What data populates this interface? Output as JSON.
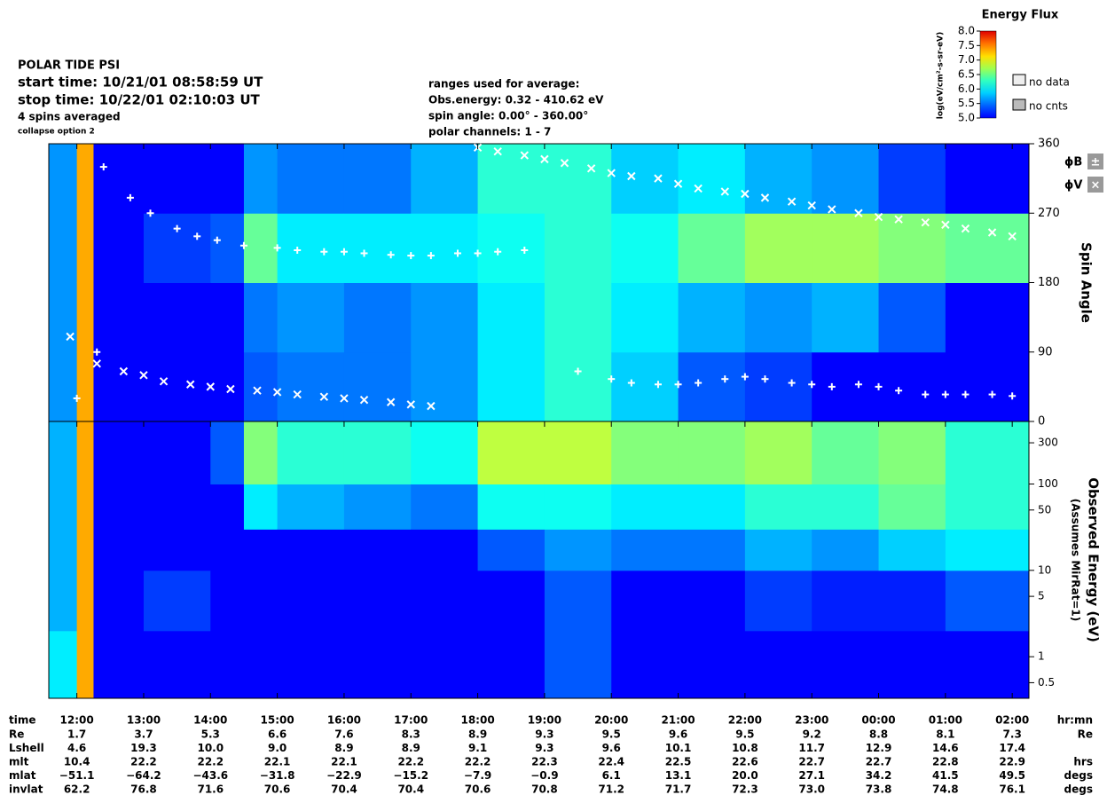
{
  "header": {
    "title": "POLAR TIDE PSI",
    "start": "start time: 10/21/01 08:58:59 UT",
    "stop": "stop time: 10/22/01 02:10:03 UT",
    "spins": "4 spins averaged",
    "collapse": "collapse option 2",
    "ranges": [
      "ranges used for average:",
      "Obs.energy: 0.32 - 410.62 eV",
      "spin angle: 0.00° - 360.00°",
      "polar channels: 1 - 7"
    ]
  },
  "legend": {
    "no_data": "no data",
    "no_cnts": "no cnts",
    "phi_b": "ϕB",
    "phi_b_symbol": "±",
    "phi_v": "ϕV",
    "phi_v_symbol": "×"
  },
  "chart_data": [
    {
      "type": "heatmap",
      "ylabel": "Spin Angle",
      "xlim": [
        11.58,
        26.25
      ],
      "ylim": [
        0,
        360
      ],
      "yticks": [
        0,
        90,
        180,
        270,
        360
      ],
      "x_bins": [
        11.58,
        12,
        12.25,
        13,
        14,
        14.5,
        15,
        16,
        17,
        18,
        19,
        20,
        21,
        22,
        23,
        24,
        25,
        26.25
      ],
      "y_bins": [
        0,
        90,
        180,
        270,
        360
      ],
      "values": [
        [
          5.5,
          5.5,
          5.5,
          5.5
        ],
        [
          7,
          7,
          7,
          7
        ],
        [
          5,
          5,
          5,
          5
        ],
        [
          5,
          5,
          5.2,
          5
        ],
        [
          5,
          5,
          5.3,
          5
        ],
        [
          5.3,
          5.4,
          6.2,
          5.5
        ],
        [
          5.4,
          5.5,
          5.8,
          5.4
        ],
        [
          5.4,
          5.4,
          5.8,
          5.4
        ],
        [
          5.5,
          5.5,
          5.8,
          5.6
        ],
        [
          5.8,
          5.8,
          5.9,
          6
        ],
        [
          6,
          6,
          6,
          6
        ],
        [
          5.7,
          5.8,
          5.9,
          5.7
        ],
        [
          5.3,
          5.6,
          6.2,
          5.8
        ],
        [
          5.2,
          5.5,
          6.4,
          5.6
        ],
        [
          5,
          5.6,
          6.4,
          5.5
        ],
        [
          5,
          5.3,
          6.3,
          5.2
        ],
        [
          5,
          5,
          6.2,
          5
        ]
      ],
      "colorbar": {
        "title": "Energy Flux",
        "label": "log(eV/cm²-s-sr-eV)",
        "lim": [
          5,
          8
        ],
        "ticks": [
          {
            "value": 5,
            "label": "5.0"
          },
          {
            "value": 5.5,
            "label": "5.5"
          },
          {
            "value": 6,
            "label": "6.0"
          },
          {
            "value": 6.5,
            "label": "6.5"
          },
          {
            "value": 7,
            "label": "7.0"
          },
          {
            "value": 7.5,
            "label": "7.5"
          },
          {
            "value": 8,
            "label": "8.0"
          }
        ]
      },
      "series": [
        {
          "name": "ϕB",
          "marker": "plus",
          "color": "#ffffff",
          "x": [
            12.0,
            12.3,
            12.4,
            12.8,
            13.1,
            13.5,
            13.8,
            14.1,
            14.5,
            15,
            15.3,
            15.7,
            16,
            16.3,
            16.7,
            17,
            17.3,
            17.7,
            18,
            18.3,
            18.7,
            19.5,
            20,
            20.3,
            20.7,
            21,
            21.3,
            21.7,
            22,
            22.3,
            22.7,
            23,
            23.3,
            23.7,
            24,
            24.3,
            24.7,
            25,
            25.3,
            25.7,
            26
          ],
          "values": [
            30,
            90,
            330,
            290,
            270,
            250,
            240,
            235,
            228,
            225,
            222,
            220,
            220,
            218,
            216,
            215,
            215,
            218,
            218,
            220,
            222,
            65,
            55,
            50,
            48,
            48,
            50,
            55,
            58,
            55,
            50,
            48,
            45,
            48,
            45,
            40,
            35,
            35,
            35,
            35,
            33
          ]
        },
        {
          "name": "ϕV",
          "marker": "cross",
          "color": "#ffffff",
          "x": [
            11.9,
            12.3,
            12.7,
            13,
            13.3,
            13.7,
            14,
            14.3,
            14.7,
            15,
            15.3,
            15.7,
            16,
            16.3,
            16.7,
            17,
            17.3,
            18,
            18.3,
            18.7,
            19,
            19.3,
            19.7,
            20,
            20.3,
            20.7,
            21,
            21.3,
            21.7,
            22,
            22.3,
            22.7,
            23,
            23.3,
            23.7,
            24,
            24.3,
            24.7,
            25,
            25.3,
            25.7,
            26
          ],
          "values": [
            110,
            75,
            65,
            60,
            52,
            48,
            45,
            42,
            40,
            38,
            35,
            32,
            30,
            28,
            25,
            22,
            20,
            355,
            350,
            345,
            340,
            335,
            328,
            322,
            318,
            315,
            308,
            302,
            298,
            295,
            290,
            285,
            280,
            275,
            270,
            265,
            262,
            258,
            255,
            250,
            245,
            240
          ]
        }
      ]
    },
    {
      "type": "heatmap",
      "ylabel": "Observed Energy (eV)",
      "ylabel2": "(Assumes MirRat=1)",
      "log_y": true,
      "xlim": [
        11.58,
        26.25
      ],
      "ylim": [
        0.33,
        530
      ],
      "yticks": [
        0.5,
        1,
        5,
        10,
        50,
        100,
        300
      ],
      "xticks": [
        {
          "value": 12,
          "label": "12:00"
        },
        {
          "value": 13,
          "label": "13:00"
        },
        {
          "value": 14,
          "label": "14:00"
        },
        {
          "value": 15,
          "label": "15:00"
        },
        {
          "value": 16,
          "label": "16:00"
        },
        {
          "value": 17,
          "label": "17:00"
        },
        {
          "value": 18,
          "label": "18:00"
        },
        {
          "value": 19,
          "label": "19:00"
        },
        {
          "value": 20,
          "label": "20:00"
        },
        {
          "value": 21,
          "label": "21:00"
        },
        {
          "value": 22,
          "label": "22:00"
        },
        {
          "value": 23,
          "label": "23:00"
        },
        {
          "value": 24,
          "label": "00:00"
        },
        {
          "value": 25,
          "label": "01:00"
        },
        {
          "value": 26,
          "label": "02:00"
        }
      ],
      "x_bins": [
        11.58,
        12,
        12.25,
        13,
        14,
        14.5,
        15,
        16,
        17,
        18,
        19,
        20,
        21,
        22,
        23,
        24,
        25,
        26.25
      ],
      "y_bins": [
        0.33,
        2,
        10,
        30,
        100,
        530
      ],
      "values": [
        [
          5.8,
          5.6,
          5.6,
          5.6,
          5.6
        ],
        [
          7,
          7,
          7,
          7,
          7
        ],
        [
          5,
          5,
          5,
          5,
          5
        ],
        [
          5,
          5.2,
          5,
          5,
          5
        ],
        [
          5,
          5,
          5,
          5,
          5.3
        ],
        [
          5,
          5,
          5,
          5.8,
          6.3
        ],
        [
          5,
          5,
          5,
          5.6,
          6
        ],
        [
          5,
          5,
          5,
          5.5,
          6
        ],
        [
          5,
          5,
          5,
          5.4,
          5.9
        ],
        [
          5,
          5,
          5.3,
          5.9,
          6.5
        ],
        [
          5.3,
          5.3,
          5.5,
          5.9,
          6.5
        ],
        [
          5,
          5,
          5.4,
          5.8,
          6.3
        ],
        [
          5,
          5,
          5.4,
          5.8,
          6.3
        ],
        [
          5,
          5.2,
          5.6,
          6,
          6.4
        ],
        [
          5,
          5.1,
          5.5,
          6,
          6.2
        ],
        [
          5,
          5.1,
          5.7,
          6.2,
          6.3
        ],
        [
          5,
          5.3,
          5.8,
          6,
          6
        ]
      ]
    }
  ],
  "ephemeris": {
    "time_label": "time",
    "time_unit": "hr:mn",
    "rows": [
      {
        "name": "Re",
        "unit": "Re",
        "values": [
          "1.7",
          "3.7",
          "5.3",
          "6.6",
          "7.6",
          "8.3",
          "8.9",
          "9.3",
          "9.5",
          "9.6",
          "9.5",
          "9.2",
          "8.8",
          "8.1",
          "7.3"
        ]
      },
      {
        "name": "Lshell",
        "values": [
          "4.6",
          "19.3",
          "10.0",
          "9.0",
          "8.9",
          "8.9",
          "9.1",
          "9.3",
          "9.6",
          "10.1",
          "10.8",
          "11.7",
          "12.9",
          "14.6",
          "17.4"
        ]
      },
      {
        "name": "mlt",
        "unit": "hrs",
        "values": [
          "10.4",
          "22.2",
          "22.2",
          "22.1",
          "22.1",
          "22.2",
          "22.2",
          "22.3",
          "22.4",
          "22.5",
          "22.6",
          "22.7",
          "22.7",
          "22.8",
          "22.9"
        ]
      },
      {
        "name": "mlat",
        "unit": "degs",
        "values": [
          "−51.1",
          "−64.2",
          "−43.6",
          "−31.8",
          "−22.9",
          "−15.2",
          "−7.9",
          "−0.9",
          "6.1",
          "13.1",
          "20.0",
          "27.1",
          "34.2",
          "41.5",
          "49.5"
        ]
      },
      {
        "name": "invlat",
        "unit": "degs",
        "values": [
          "62.2",
          "76.8",
          "71.6",
          "70.6",
          "70.4",
          "70.4",
          "70.6",
          "70.8",
          "71.2",
          "71.7",
          "72.3",
          "73.0",
          "73.8",
          "74.8",
          "76.1"
        ]
      }
    ]
  }
}
